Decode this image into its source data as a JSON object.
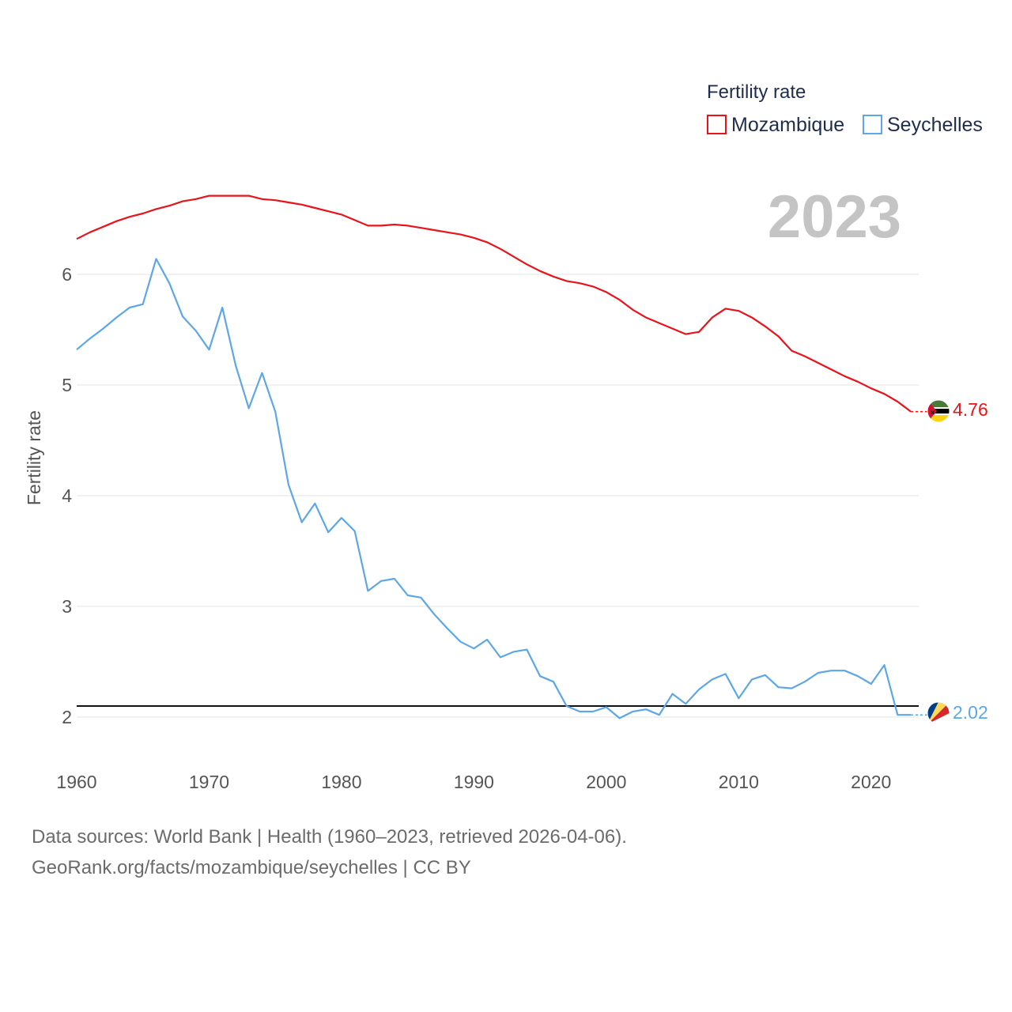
{
  "chart_data": {
    "type": "line",
    "legend_title": "Fertility rate",
    "ylabel": "Fertility rate",
    "xlabel": "",
    "year_label": "2023",
    "xlim": [
      1960,
      2023
    ],
    "ylim": [
      1.6,
      6.85
    ],
    "x_ticks": [
      1960,
      1970,
      1980,
      1990,
      2000,
      2010,
      2020
    ],
    "y_ticks": [
      2,
      3,
      4,
      5,
      6
    ],
    "reference_line": 2.1,
    "x": [
      1960,
      1961,
      1962,
      1963,
      1964,
      1965,
      1966,
      1967,
      1968,
      1969,
      1970,
      1971,
      1972,
      1973,
      1974,
      1975,
      1976,
      1977,
      1978,
      1979,
      1980,
      1981,
      1982,
      1983,
      1984,
      1985,
      1986,
      1987,
      1988,
      1989,
      1990,
      1991,
      1992,
      1993,
      1994,
      1995,
      1996,
      1997,
      1998,
      1999,
      2000,
      2001,
      2002,
      2003,
      2004,
      2005,
      2006,
      2007,
      2008,
      2009,
      2010,
      2011,
      2012,
      2013,
      2014,
      2015,
      2016,
      2017,
      2018,
      2019,
      2020,
      2021,
      2022,
      2023
    ],
    "series": [
      {
        "name": "Mozambique",
        "color": "#e8141b",
        "end_label": "4.76",
        "values": [
          6.32,
          6.38,
          6.43,
          6.48,
          6.52,
          6.55,
          6.59,
          6.62,
          6.66,
          6.68,
          6.71,
          6.71,
          6.71,
          6.71,
          6.68,
          6.67,
          6.65,
          6.63,
          6.6,
          6.57,
          6.54,
          6.49,
          6.44,
          6.44,
          6.45,
          6.44,
          6.42,
          6.4,
          6.38,
          6.36,
          6.33,
          6.29,
          6.23,
          6.16,
          6.09,
          6.03,
          5.98,
          5.94,
          5.92,
          5.89,
          5.84,
          5.77,
          5.68,
          5.61,
          5.56,
          5.51,
          5.46,
          5.48,
          5.61,
          5.69,
          5.67,
          5.61,
          5.53,
          5.44,
          5.31,
          5.26,
          5.2,
          5.14,
          5.08,
          5.03,
          4.97,
          4.92,
          4.85,
          4.76
        ]
      },
      {
        "name": "Seychelles",
        "color": "#5ea7e6",
        "end_label": "2.02",
        "values": [
          5.32,
          5.42,
          5.51,
          5.61,
          5.7,
          5.73,
          6.14,
          5.92,
          5.62,
          5.49,
          5.32,
          5.7,
          5.18,
          4.79,
          5.11,
          4.76,
          4.1,
          3.76,
          3.93,
          3.67,
          3.8,
          3.68,
          3.14,
          3.23,
          3.25,
          3.1,
          3.08,
          2.93,
          2.8,
          2.68,
          2.62,
          2.7,
          2.54,
          2.59,
          2.61,
          2.37,
          2.32,
          2.1,
          2.05,
          2.05,
          2.09,
          1.99,
          2.05,
          2.07,
          2.02,
          2.21,
          2.12,
          2.25,
          2.34,
          2.39,
          2.17,
          2.34,
          2.38,
          2.27,
          2.26,
          2.32,
          2.4,
          2.42,
          2.42,
          2.37,
          2.3,
          2.47,
          2.02,
          2.02
        ]
      }
    ]
  },
  "footer": {
    "line1": "Data sources: World Bank | Health (1960–2023, retrieved 2026-04-06).",
    "line2": "GeoRank.org/facts/mozambique/seychelles | CC BY"
  }
}
